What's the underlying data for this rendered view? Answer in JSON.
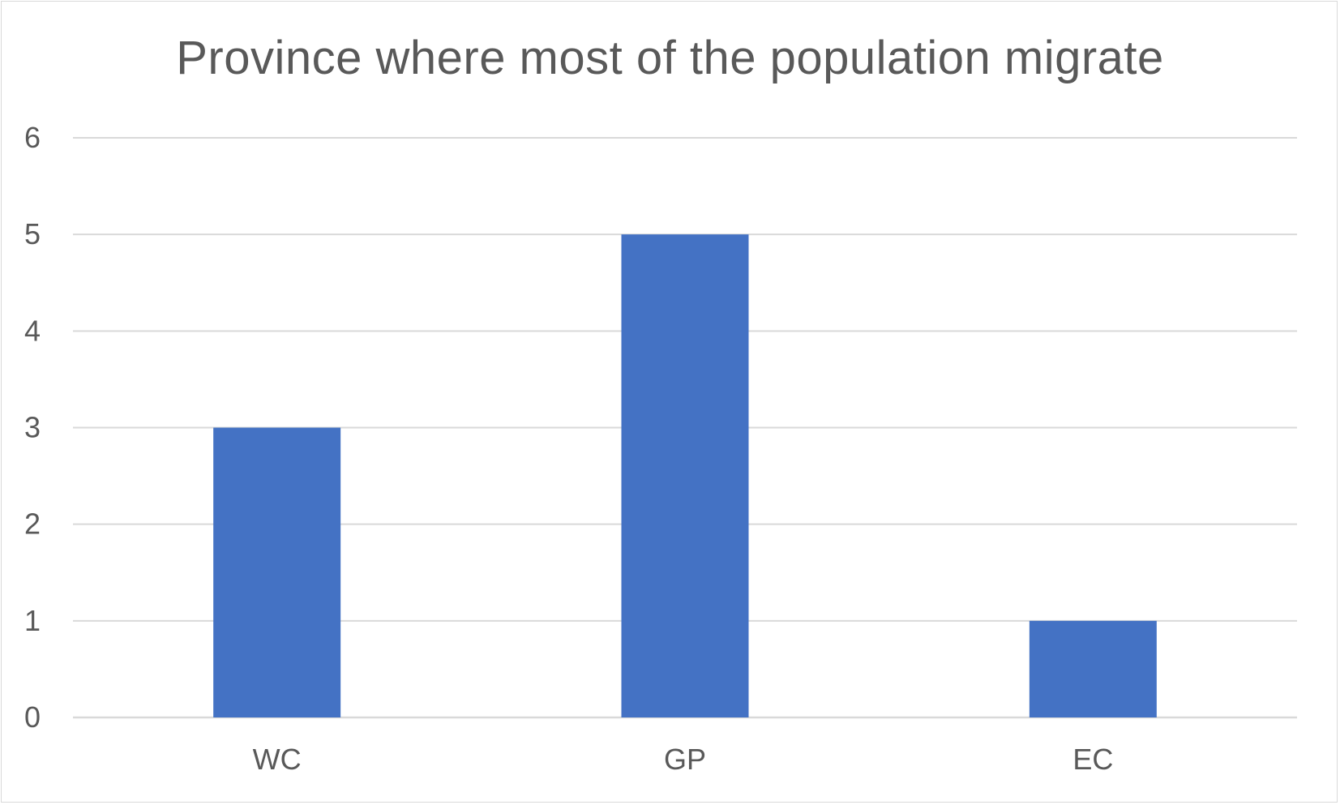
{
  "chart_data": {
    "type": "bar",
    "title": "Province where most of the population migrate",
    "categories": [
      "WC",
      "GP",
      "EC"
    ],
    "values": [
      3,
      5,
      1
    ],
    "xlabel": "",
    "ylabel": "",
    "ylim": [
      0,
      6
    ],
    "yticks": [
      "0",
      "1",
      "2",
      "3",
      "4",
      "5",
      "6"
    ],
    "grid": true,
    "legend": "none",
    "bar_color": "#4472C4",
    "gridline_color": "#d9d9d9",
    "text_color": "#595959"
  }
}
